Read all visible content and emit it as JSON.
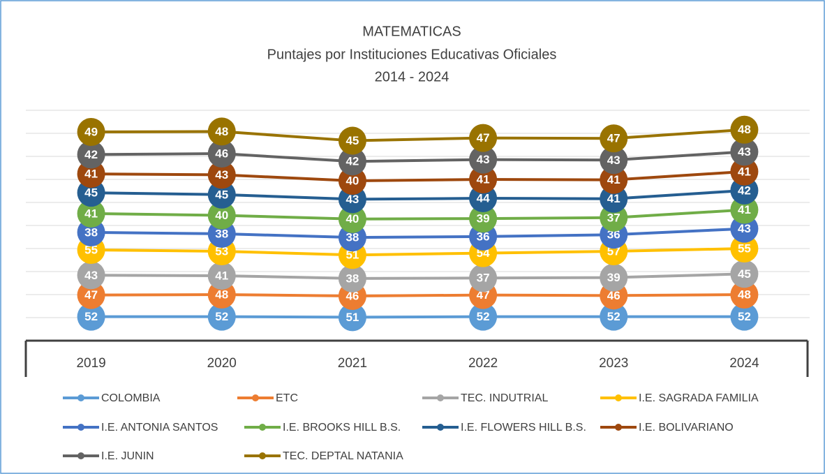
{
  "chart_data": {
    "type": "line",
    "stacked": true,
    "title": "MATEMATICAS",
    "subtitle": "Puntajes por Instituciones Educativas Oficiales",
    "period": "2014 - 2024",
    "categories": [
      "2019",
      "2020",
      "2021",
      "2022",
      "2023",
      "2024"
    ],
    "ylim": [
      0,
      500
    ],
    "yticks": [
      0,
      50,
      100,
      150,
      200,
      250,
      300,
      350,
      400,
      450,
      500
    ],
    "grid": true,
    "legend": "bottom",
    "series": [
      {
        "name": "COLOMBIA",
        "color": "#5b9bd5",
        "values": [
          52,
          52,
          51,
          52,
          52,
          52
        ]
      },
      {
        "name": "ETC",
        "color": "#ed7d31",
        "values": [
          47,
          48,
          46,
          47,
          46,
          48
        ]
      },
      {
        "name": "TEC. INDUTRIAL",
        "color": "#a5a5a5",
        "values": [
          43,
          41,
          38,
          37,
          39,
          45
        ]
      },
      {
        "name": "I.E. SAGRADA FAMILIA",
        "color": "#ffc000",
        "values": [
          55,
          53,
          51,
          54,
          57,
          55
        ]
      },
      {
        "name": "I.E. ANTONIA SANTOS",
        "color": "#4472c4",
        "values": [
          38,
          38,
          38,
          36,
          36,
          43
        ]
      },
      {
        "name": "I.E. BROOKS HILL B.S.",
        "color": "#70ad47",
        "values": [
          41,
          40,
          40,
          39,
          37,
          41
        ]
      },
      {
        "name": "I.E. FLOWERS HILL B.S.",
        "color": "#255e91",
        "values": [
          45,
          45,
          43,
          44,
          41,
          42
        ]
      },
      {
        "name": "I.E. BOLIVARIANO",
        "color": "#9e480e",
        "values": [
          41,
          43,
          40,
          41,
          41,
          41
        ]
      },
      {
        "name": "I.E. JUNIN",
        "color": "#636363",
        "values": [
          42,
          46,
          42,
          43,
          43,
          43
        ]
      },
      {
        "name": "TEC. DEPTAL NATANIA",
        "color": "#997300",
        "values": [
          49,
          48,
          45,
          47,
          47,
          48
        ]
      }
    ]
  }
}
